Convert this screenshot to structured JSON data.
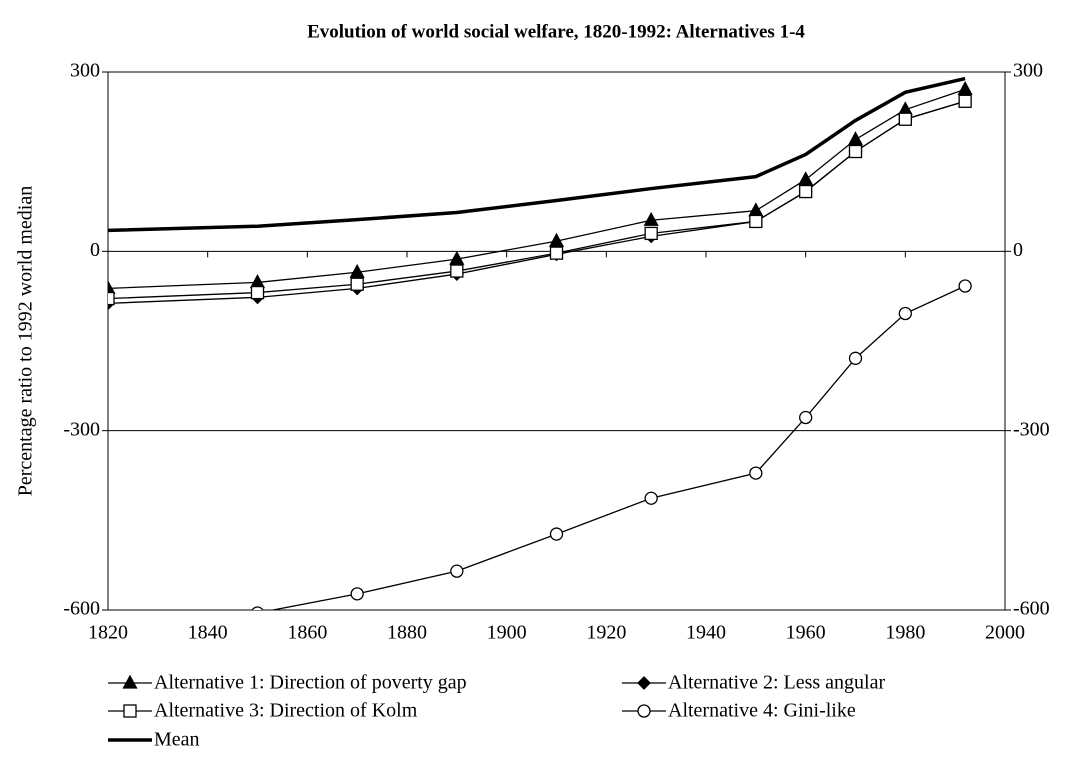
{
  "chart_data": {
    "type": "line",
    "title": "Evolution of world social welfare, 1820-1992: Alternatives 1-4",
    "y_label": "Percentage ratio to 1992 world median",
    "x": [
      1820,
      1850,
      1870,
      1890,
      1910,
      1929,
      1950,
      1960,
      1970,
      1980,
      1992
    ],
    "xlim": [
      1820,
      2000
    ],
    "xticks": [
      1820,
      1840,
      1860,
      1880,
      1900,
      1920,
      1940,
      1960,
      1980,
      2000
    ],
    "ylim": [
      -600,
      300
    ],
    "yticks": [
      -600,
      -300,
      0,
      300
    ],
    "y2lim": [
      -600,
      300
    ],
    "y2ticks": [
      -600,
      -300,
      0,
      300
    ],
    "grid": true,
    "series": [
      {
        "name": "Alternative 1: Direction of poverty gap",
        "color": "#000000",
        "marker": "triangle",
        "line_width": 1.3,
        "values": [
          -62,
          -52,
          -35,
          -13,
          17,
          52,
          68,
          120,
          187,
          237,
          271
        ]
      },
      {
        "name": "Alternative 2: Less angular",
        "color": "#000000",
        "marker": "diamond",
        "line_width": 1.3,
        "values": [
          -87,
          -77,
          -62,
          -38,
          -5,
          25,
          50,
          100,
          167,
          221,
          251
        ]
      },
      {
        "name": "Alternative 3: Direction of Kolm",
        "color": "#000000",
        "marker": "square",
        "line_width": 1.3,
        "values": [
          -79,
          -69,
          -55,
          -33,
          -3,
          30,
          50,
          100,
          167,
          221,
          251
        ]
      },
      {
        "name": "Alternative 4: Gini-like",
        "color": "#000000",
        "marker": "circle",
        "line_width": 1.3,
        "values": [
          -616,
          -605,
          -573,
          -535,
          -473,
          -413,
          -371,
          -278,
          -179,
          -104,
          -58
        ]
      },
      {
        "name": "Mean",
        "color": "#000000",
        "marker": "none",
        "line_width": 3.5,
        "values": [
          35,
          42,
          53,
          65,
          85,
          105,
          125,
          162,
          219,
          266,
          289
        ]
      }
    ]
  }
}
